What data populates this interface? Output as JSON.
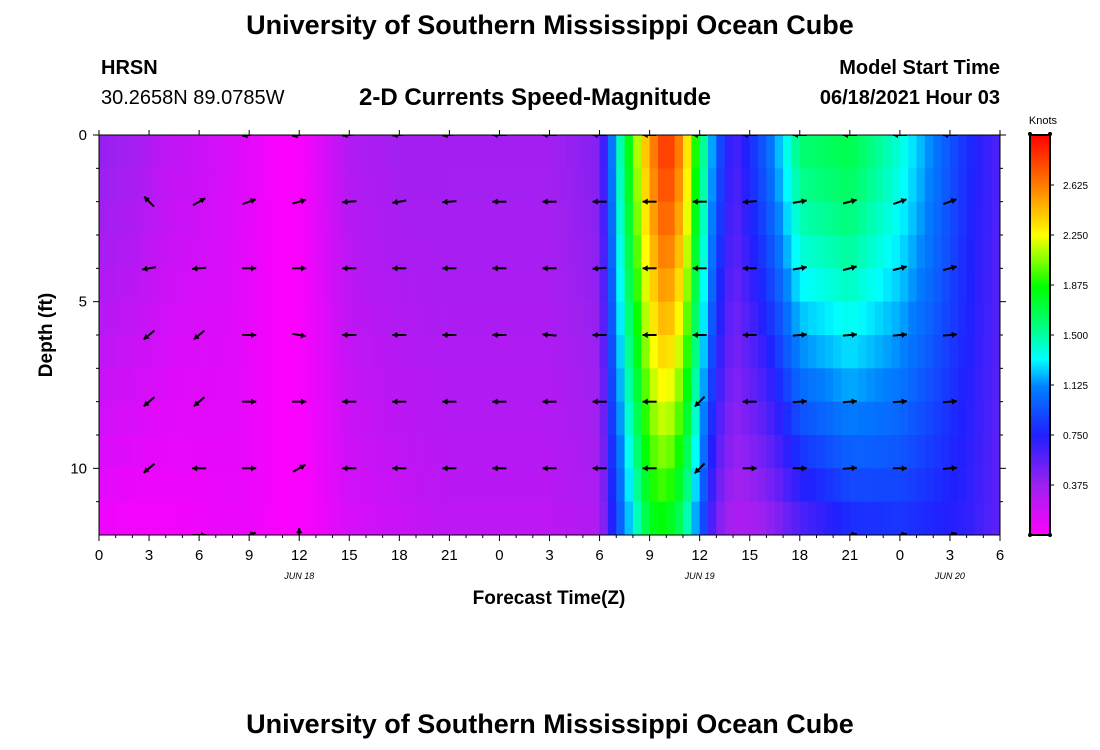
{
  "page": {
    "title_top": "University of Southern Mississippi Ocean Cube",
    "title_bottom": "University of Southern Mississippi Ocean Cube",
    "station_name": "HRSN",
    "station_coords": "30.2658N  89.0785W",
    "plot_title": "2-D Currents Speed-Magnitude",
    "model_label": "Model Start Time",
    "model_time": "06/18/2021 Hour 03"
  },
  "chart_data": {
    "type": "heatmap",
    "title": "2-D Currents Speed-Magnitude",
    "xlabel": "Forecast Time(Z)",
    "ylabel": "Depth (ft)",
    "xlim": [
      0,
      54
    ],
    "ylim": [
      0,
      12
    ],
    "xticks": [
      0,
      3,
      6,
      9,
      12,
      15,
      18,
      21,
      24,
      27,
      30,
      33,
      36,
      39,
      42,
      45,
      48,
      51,
      54
    ],
    "xtick_labels": [
      "0",
      "3",
      "6",
      "9",
      "12",
      "15",
      "18",
      "21",
      "0",
      "3",
      "6",
      "9",
      "12",
      "15",
      "18",
      "21",
      "0",
      "3",
      "6"
    ],
    "yticks": [
      0,
      5,
      10
    ],
    "ytick_labels": [
      "0",
      "5",
      "10"
    ],
    "date_labels": [
      {
        "x": 12,
        "text": "JUN 18"
      },
      {
        "x": 36,
        "text": "JUN 19"
      },
      {
        "x": 51,
        "text": "JUN 20"
      }
    ],
    "colorbar": {
      "label": "Knots",
      "min": 0,
      "max": 3.0,
      "ticks": [
        0.375,
        0.75,
        1.125,
        1.5,
        1.875,
        2.25,
        2.625
      ],
      "tick_labels": [
        "0.375",
        "0.750",
        "1.125",
        "1.500",
        "1.875",
        "2.250",
        "2.625"
      ]
    },
    "speed_profile": {
      "note": "approximate speed (knots) per forecast hour at surface and at bottom depth",
      "hours": [
        0,
        2,
        4,
        6,
        8,
        10,
        11,
        12,
        13,
        15,
        18,
        21,
        24,
        27,
        30,
        31,
        32,
        33,
        34,
        35,
        36,
        37,
        38,
        39,
        40,
        42,
        45,
        48,
        50,
        52,
        54
      ],
      "surface": [
        0.4,
        0.35,
        0.25,
        0.2,
        0.15,
        0.05,
        0.02,
        0.02,
        0.1,
        0.3,
        0.35,
        0.35,
        0.35,
        0.35,
        0.45,
        1.3,
        2.0,
        2.55,
        2.9,
        2.55,
        1.7,
        1.0,
        0.6,
        0.8,
        1.0,
        1.6,
        1.7,
        1.4,
        1.1,
        0.8,
        0.6
      ],
      "bottom": [
        0.05,
        0.03,
        0.03,
        0.05,
        0.08,
        0.05,
        0.02,
        0.02,
        0.05,
        0.15,
        0.2,
        0.25,
        0.25,
        0.25,
        0.3,
        0.85,
        1.3,
        1.75,
        1.8,
        1.55,
        1.0,
        0.45,
        0.3,
        0.3,
        0.35,
        0.55,
        0.75,
        0.8,
        0.75,
        0.7,
        0.55
      ]
    },
    "vectors": {
      "hours": [
        3,
        6,
        9,
        12,
        15,
        18,
        21,
        24,
        27,
        30,
        33,
        36,
        39,
        42,
        45,
        48,
        51
      ],
      "depths": [
        0,
        2,
        4,
        6,
        8,
        10,
        12
      ],
      "directions_deg": [
        [
          0,
          0,
          190,
          190,
          185,
          185,
          185,
          180,
          180,
          180,
          180,
          180,
          180,
          180,
          180,
          180,
          180
        ],
        [
          135,
          30,
          20,
          15,
          185,
          190,
          185,
          180,
          180,
          180,
          180,
          180,
          185,
          10,
          15,
          20,
          20
        ],
        [
          190,
          185,
          0,
          0,
          180,
          180,
          180,
          180,
          180,
          185,
          180,
          180,
          180,
          10,
          15,
          15,
          15
        ],
        [
          220,
          220,
          0,
          350,
          180,
          180,
          180,
          180,
          175,
          180,
          180,
          180,
          180,
          5,
          5,
          5,
          5
        ],
        [
          220,
          220,
          0,
          0,
          180,
          180,
          180,
          180,
          180,
          180,
          180,
          225,
          180,
          5,
          5,
          5,
          5
        ],
        [
          220,
          180,
          0,
          30,
          180,
          180,
          180,
          180,
          180,
          180,
          180,
          225,
          0,
          0,
          5,
          0,
          5
        ],
        [
          0,
          0,
          20,
          90,
          0,
          0,
          0,
          0,
          0,
          0,
          0,
          0,
          0,
          0,
          10,
          10,
          15
        ]
      ],
      "visible": [
        [
          0,
          0,
          1,
          1,
          1,
          1,
          1,
          1,
          1,
          1,
          1,
          1,
          1,
          1,
          1,
          1,
          1
        ],
        [
          1,
          1,
          1,
          1,
          1,
          1,
          1,
          1,
          1,
          1,
          1,
          1,
          1,
          1,
          1,
          1,
          1
        ],
        [
          1,
          1,
          1,
          1,
          1,
          1,
          1,
          1,
          1,
          1,
          1,
          1,
          1,
          1,
          1,
          1,
          1
        ],
        [
          1,
          1,
          1,
          1,
          1,
          1,
          1,
          1,
          1,
          1,
          1,
          1,
          1,
          1,
          1,
          1,
          1
        ],
        [
          1,
          1,
          1,
          1,
          1,
          1,
          1,
          1,
          1,
          1,
          1,
          1,
          1,
          1,
          1,
          1,
          1
        ],
        [
          1,
          1,
          1,
          1,
          1,
          1,
          1,
          1,
          1,
          1,
          1,
          1,
          1,
          1,
          1,
          1,
          1
        ],
        [
          0,
          1,
          1,
          1,
          0,
          0,
          0,
          0,
          0,
          0,
          0,
          0,
          0,
          0,
          1,
          1,
          1
        ]
      ]
    }
  }
}
